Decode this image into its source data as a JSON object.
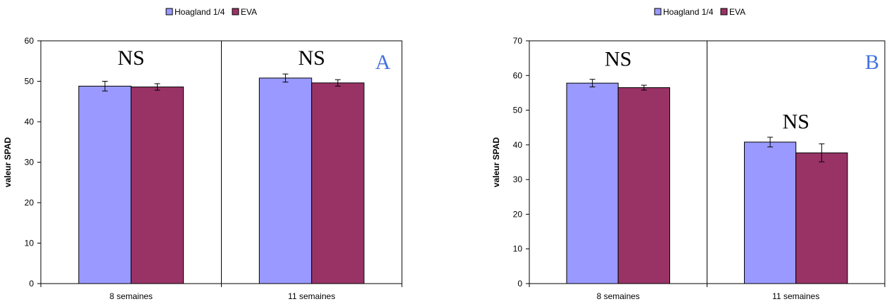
{
  "chart_data": [
    {
      "type": "bar",
      "categories": [
        "8 semaines",
        "11 semaines"
      ],
      "series": [
        {
          "name": "Hoagland 1/4",
          "color": "#9999ff",
          "values": [
            48.8,
            50.8
          ],
          "errors": [
            1.2,
            1.0
          ]
        },
        {
          "name": "EVA",
          "color": "#993366",
          "values": [
            48.6,
            49.6
          ],
          "errors": [
            0.8,
            0.8
          ]
        }
      ],
      "ylabel": "valeur SPAD",
      "ylim": [
        0,
        60
      ],
      "yticks": [
        0,
        10,
        20,
        30,
        40,
        50,
        60
      ],
      "legend": "top",
      "annotations": [
        {
          "text": "NS",
          "category": 0,
          "y": 56
        },
        {
          "text": "NS",
          "category": 1,
          "y": 56
        }
      ],
      "panel_letter": {
        "text": "A",
        "color": "#4472e0"
      }
    },
    {
      "type": "bar",
      "categories": [
        "8 semaines",
        "11 semaines"
      ],
      "series": [
        {
          "name": "Hoagland 1/4",
          "color": "#9999ff",
          "values": [
            57.8,
            40.8
          ],
          "errors": [
            1.1,
            1.4
          ]
        },
        {
          "name": "EVA",
          "color": "#993366",
          "values": [
            56.5,
            37.7
          ],
          "errors": [
            0.7,
            2.6
          ]
        }
      ],
      "ylabel": "valeur SPAD",
      "ylim": [
        0,
        70
      ],
      "yticks": [
        0,
        10,
        20,
        30,
        40,
        50,
        60,
        70
      ],
      "legend": "top",
      "annotations": [
        {
          "text": "NS",
          "category": 0,
          "y": 65
        },
        {
          "text": "NS",
          "category": 1,
          "y": 47
        }
      ],
      "panel_letter": {
        "text": "B",
        "color": "#4472e0"
      }
    }
  ]
}
